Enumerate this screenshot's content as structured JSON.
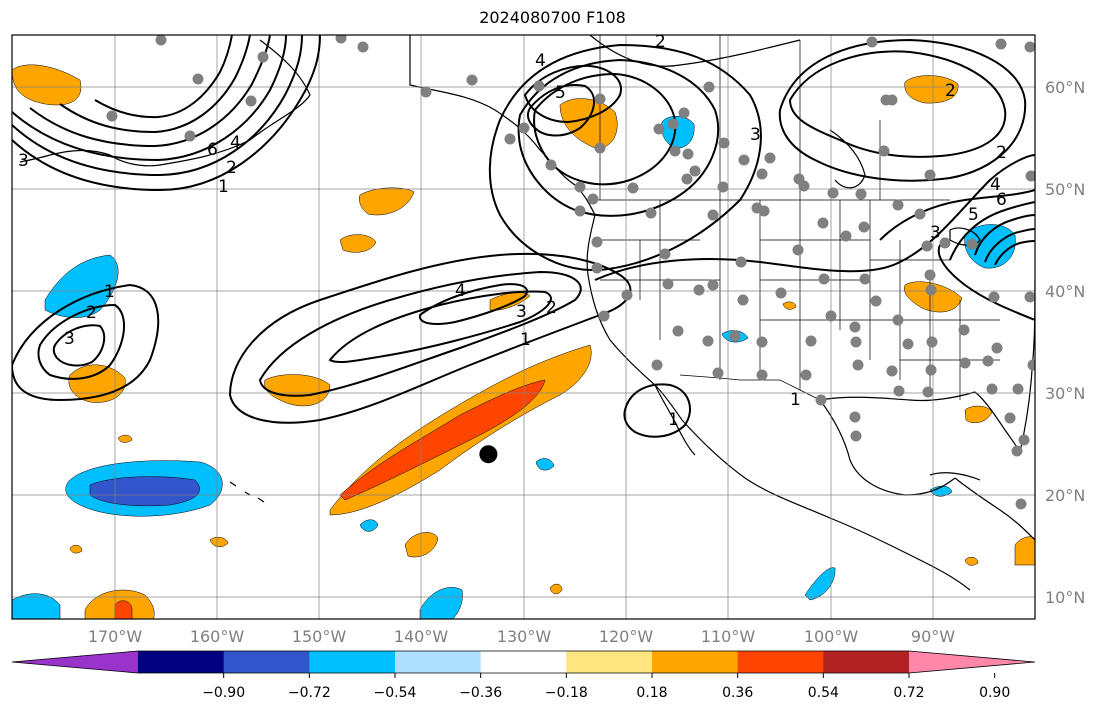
{
  "title": "2024080700 F108",
  "map": {
    "projection": "PlateCarree",
    "lon_range": [
      -181,
      -80
    ],
    "lat_range": [
      7.5,
      65.5
    ],
    "lat_ticks": [
      {
        "value": 60,
        "label": "60°N"
      },
      {
        "value": 50,
        "label": "50°N"
      },
      {
        "value": 40,
        "label": "40°N"
      },
      {
        "value": 30,
        "label": "30°N"
      },
      {
        "value": 20,
        "label": "20°N"
      },
      {
        "value": 10,
        "label": "10°N"
      }
    ],
    "lon_ticks": [
      {
        "value": -170,
        "label": "170°W"
      },
      {
        "value": -160,
        "label": "160°W"
      },
      {
        "value": -150,
        "label": "150°W"
      },
      {
        "value": -140,
        "label": "140°W"
      },
      {
        "value": -130,
        "label": "130°W"
      },
      {
        "value": -120,
        "label": "120°W"
      },
      {
        "value": -110,
        "label": "110°W"
      },
      {
        "value": -100,
        "label": "100°W"
      },
      {
        "value": -90,
        "label": "90°W"
      }
    ],
    "grid": true
  },
  "colorbar": {
    "colors": [
      "#9933cc",
      "#000080",
      "#3355cc",
      "#00bfff",
      "#b0e0ff",
      "#ffffff",
      "#ffe680",
      "#ffa500",
      "#ff4500",
      "#b22222",
      "#ff88aa"
    ],
    "tick_labels": [
      "−0.90",
      "−0.72",
      "−0.54",
      "−0.36",
      "−0.18",
      "0.18",
      "0.36",
      "0.54",
      "0.72",
      "0.90"
    ]
  },
  "contour_labels": [
    "1",
    "2",
    "3",
    "4",
    "5",
    "6"
  ],
  "marker": {
    "lon": -133.5,
    "lat": 24,
    "color": "#000000"
  },
  "station_color": "#808080"
}
